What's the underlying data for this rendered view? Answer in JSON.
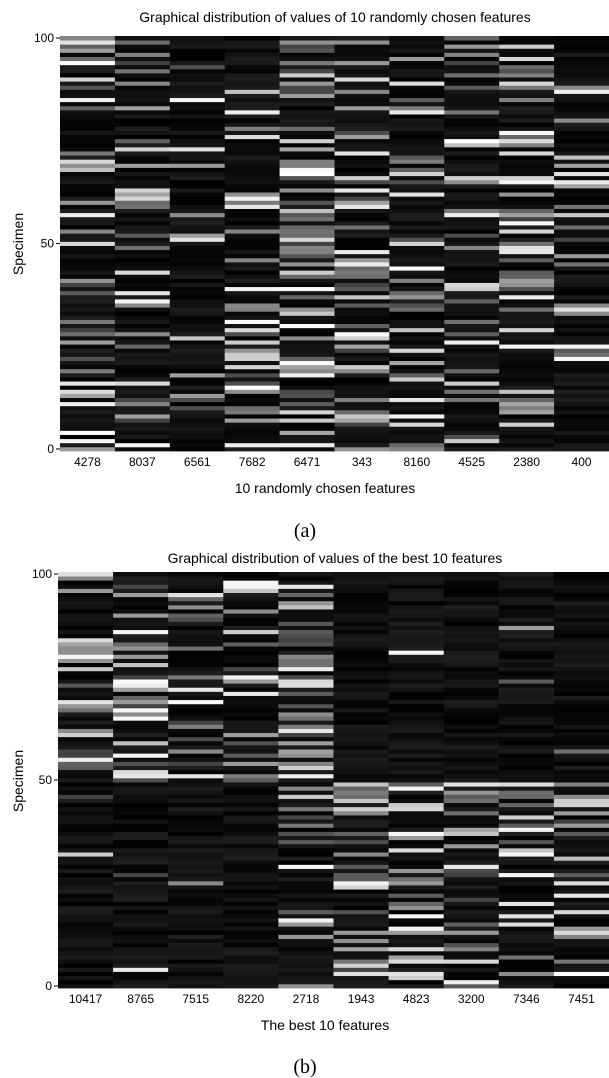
{
  "chart_data": [
    {
      "type": "heatmap",
      "title": "Graphical distribution of values of 10 randomly chosen features",
      "xlabel": "10 randomly chosen features",
      "ylabel": "Specimen",
      "categories": [
        "4278",
        "8037",
        "6561",
        "7682",
        "6471",
        "343",
        "8160",
        "4525",
        "2380",
        "400"
      ],
      "y_ticks": [
        0,
        50,
        100
      ],
      "ylim": [
        0,
        100
      ],
      "colormap": "grayscale (black = low, white = high)",
      "mean_brightness": [
        0.35,
        0.3,
        0.12,
        0.32,
        0.45,
        0.38,
        0.28,
        0.25,
        0.42,
        0.28
      ],
      "caption": "(a)"
    },
    {
      "type": "heatmap",
      "title": "Graphical distribution of values of the best 10 features",
      "xlabel": "The best 10 features",
      "ylabel": "Specimen",
      "categories": [
        "10417",
        "8765",
        "7515",
        "8220",
        "2718",
        "1943",
        "4823",
        "3200",
        "7346",
        "7451"
      ],
      "y_ticks": [
        0,
        50,
        100
      ],
      "ylim": [
        0,
        100
      ],
      "colormap": "grayscale (black = low, white = high)",
      "upper_half_brightness": [
        0.4,
        0.5,
        0.3,
        0.4,
        0.5,
        0.02,
        0.02,
        0.03,
        0.02,
        0.05
      ],
      "lower_half_brightness": [
        0.03,
        0.03,
        0.02,
        0.02,
        0.25,
        0.45,
        0.45,
        0.4,
        0.42,
        0.4
      ],
      "caption": "(b)"
    }
  ]
}
